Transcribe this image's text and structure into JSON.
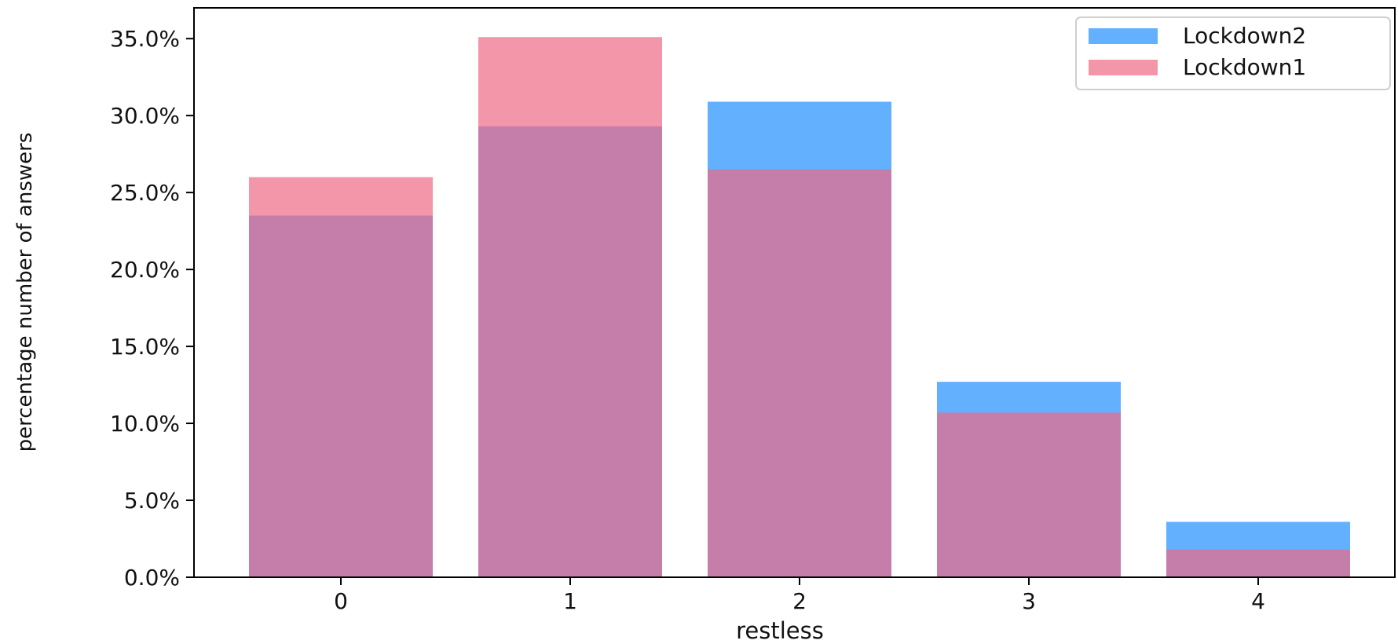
{
  "chart_data": {
    "type": "bar",
    "categories": [
      "0",
      "1",
      "2",
      "3",
      "4"
    ],
    "series": [
      {
        "name": "Lockdown2",
        "color": "#1f8fff",
        "values": [
          23.5,
          29.3,
          30.9,
          12.7,
          3.6
        ]
      },
      {
        "name": "Lockdown1",
        "color": "#ee6a85",
        "values": [
          26.0,
          35.1,
          26.5,
          10.7,
          1.8
        ]
      }
    ],
    "overlay": true,
    "bar_opacity": 0.7,
    "xlabel": "restless",
    "ylabel": "percentage number of answers",
    "ylim": [
      0,
      37
    ],
    "yticks": [
      0,
      5,
      10,
      15,
      20,
      25,
      30,
      35
    ],
    "ytick_labels": [
      "0.0%",
      "5.0%",
      "10.0%",
      "15.0%",
      "20.0%",
      "25.0%",
      "30.0%",
      "35.0%"
    ],
    "grid": false,
    "legend_position": "top-right"
  }
}
